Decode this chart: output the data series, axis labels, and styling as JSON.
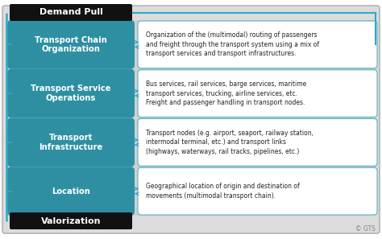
{
  "bg_color": "#dcdcdc",
  "teal_color": "#2e8fa3",
  "white": "#ffffff",
  "black": "#111111",
  "demand_pull": "Demand Pull",
  "valorization": "Valorization",
  "left_labels": [
    "Transport Chain\nOrganization",
    "Transport Service\nOperations",
    "Transport\nInfrastructure",
    "Location"
  ],
  "right_texts": [
    "Organization of the (multimodal) routing of passengers\nand freight through the transport system using a mix of\ntransport services and transport infrastructures.",
    "Bus services, rail services, barge services, maritime\ntransport services, trucking, airline services, etc.\nFreight and passenger handling in transport nodes.",
    "Transport nodes (e.g. airport, seaport, railway station,\nintermodal terminal, etc.) and transport links\n(highways, waterways, rail tracks, pipelines, etc.)",
    "Geographical location of origin and destination of\nmovements (multimodal transport chain)."
  ],
  "gts_text": "© GTS",
  "arrow_color": "#2eaac8",
  "border_color": "#aaaaaa",
  "right_box_border": "#5ab0c0",
  "text_color": "#222222",
  "fig_width": 4.74,
  "fig_height": 2.97,
  "dpi": 100
}
